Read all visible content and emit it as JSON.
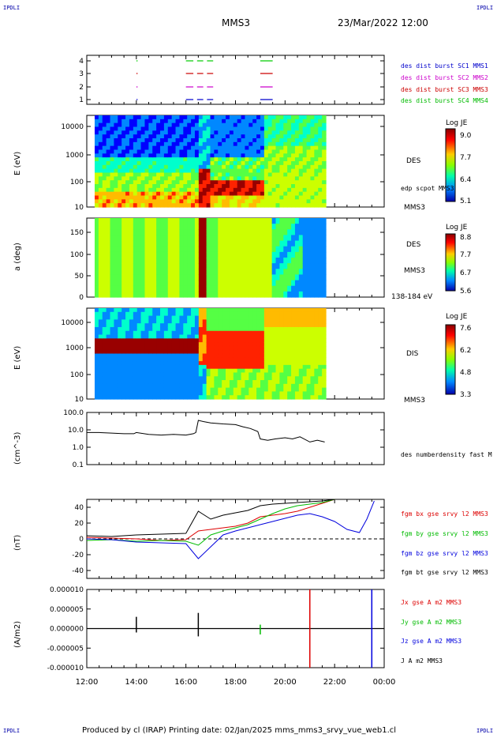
{
  "header": {
    "corner_tl": "IPDLI",
    "corner_tr": "IPDLI",
    "corner_bl": "IPDLI",
    "corner_br": "IPDLI",
    "spacecraft": "MMS3",
    "datetime": "23/Mar/2022 12:00"
  },
  "footer": {
    "text": "Produced by cl (IRAP)   Printing date: 02/Jan/2025   mms_mms3_srvy_vue_web1.cl"
  },
  "colors": {
    "mms1": "#0000cc",
    "mms2": "#cc00cc",
    "mms3": "#cc0000",
    "mms4": "#00cc00",
    "bx": "#dd0000",
    "by": "#00bb00",
    "bz": "#0000dd",
    "bt": "#000000"
  },
  "chart_data": [
    {
      "type": "scatter",
      "panel": "availability",
      "yticks": [
        "4",
        "3",
        "2",
        "1"
      ],
      "legend": [
        "des dist burst SC1 MMS1",
        "des dist burst SC2 MMS2",
        "des dist burst SC3 MMS3",
        "des dist burst SC4 MMS4"
      ]
    },
    {
      "type": "heatmap",
      "panel": "des-energy",
      "ylabel": "E (eV)",
      "yticks": [
        "10000",
        "1000",
        "100",
        "10"
      ],
      "right_labels": [
        "DES",
        "edp scpot MMS3",
        "MMS3"
      ],
      "colorbar": {
        "title": "Log JE",
        "ticks": [
          "9.0",
          "7.7",
          "6.4",
          "5.1"
        ]
      }
    },
    {
      "type": "heatmap",
      "panel": "des-pitch",
      "ylabel": "a (deg)",
      "yticks": [
        "150",
        "100",
        "50",
        "0"
      ],
      "right_labels": [
        "DES",
        "MMS3",
        "138-184 eV"
      ],
      "colorbar": {
        "title": "Log JE",
        "ticks": [
          "8.8",
          "7.7",
          "6.7",
          "5.6"
        ]
      }
    },
    {
      "type": "heatmap",
      "panel": "dis-energy",
      "ylabel": "E (eV)",
      "yticks": [
        "10000",
        "1000",
        "100",
        "10"
      ],
      "right_labels": [
        "DIS",
        "MMS3"
      ],
      "colorbar": {
        "title": "Log JE",
        "ticks": [
          "7.6",
          "6.2",
          "4.8",
          "3.3"
        ]
      }
    },
    {
      "type": "line",
      "panel": "density",
      "ylabel": "(cm^-3)",
      "yticks": [
        "100.0",
        "10.0",
        "1.0",
        "0.1"
      ],
      "legend": [
        "des numberdensity fast M"
      ],
      "x": [
        12.0,
        12.5,
        13.0,
        13.5,
        13.9,
        14.0,
        14.5,
        15.0,
        15.5,
        16.0,
        16.3,
        16.4,
        16.5,
        16.7,
        17.0,
        17.5,
        18.0,
        18.3,
        18.6,
        18.9,
        19.0,
        19.3,
        19.6,
        20.0,
        20.3,
        20.6,
        21.0,
        21.3,
        21.6
      ],
      "y": [
        7,
        7,
        6.5,
        6,
        6,
        7,
        5.5,
        5,
        5.5,
        5,
        6,
        7,
        35,
        30,
        25,
        22,
        20,
        15,
        12,
        8,
        3,
        2.5,
        3,
        3.5,
        3,
        4,
        2,
        2.5,
        2
      ]
    },
    {
      "type": "line",
      "panel": "magnetic-field",
      "ylabel": "(nT)",
      "yticks": [
        "40",
        "20",
        "0",
        "-20",
        "-40"
      ],
      "ylim": [
        -50,
        50
      ],
      "legend": [
        "fgm bx gse srvy l2 MMS3",
        "fgm by gse srvy l2 MMS3",
        "fgm bz gse srvy l2 MMS3",
        "fgm bt gse srvy l2 MMS3"
      ],
      "series": [
        {
          "name": "fgm bx gse srvy l2 MMS3",
          "x": [
            12,
            13,
            14,
            15,
            16,
            16.5,
            17,
            17.5,
            18,
            18.5,
            19,
            19.5,
            20,
            20.5,
            21,
            21.5,
            22
          ],
          "y": [
            2,
            1,
            0,
            -2,
            -1,
            10,
            12,
            14,
            16,
            20,
            28,
            30,
            32,
            35,
            40,
            45,
            50
          ]
        },
        {
          "name": "fgm by gse srvy l2 MMS3",
          "x": [
            12,
            13,
            14,
            15,
            16,
            16.5,
            17,
            17.5,
            18,
            18.5,
            19,
            19.5,
            20,
            20.5,
            21,
            21.5,
            22
          ],
          "y": [
            -2,
            -1,
            -3,
            -2,
            -3,
            -8,
            5,
            10,
            14,
            18,
            25,
            32,
            38,
            42,
            44,
            46,
            50
          ]
        },
        {
          "name": "fgm bz gse srvy l2 MMS3",
          "x": [
            12,
            13,
            14,
            15,
            16,
            16.5,
            17,
            17.5,
            18,
            18.5,
            19,
            19.5,
            20,
            20.5,
            21,
            21.5,
            22,
            22.5,
            23,
            23.3,
            23.6
          ],
          "y": [
            0,
            -1,
            -4,
            -5,
            -6,
            -25,
            -10,
            5,
            10,
            14,
            18,
            22,
            26,
            30,
            32,
            28,
            22,
            12,
            8,
            25,
            48
          ]
        },
        {
          "name": "fgm bt gse srvy l2 MMS3",
          "x": [
            12,
            13,
            14,
            15,
            16,
            16.5,
            17,
            17.5,
            18,
            18.5,
            19,
            19.5,
            20,
            20.5,
            21,
            21.5,
            22
          ],
          "y": [
            4,
            3,
            5,
            6,
            7,
            35,
            25,
            30,
            33,
            36,
            42,
            44,
            45,
            46,
            47,
            48,
            50
          ]
        }
      ]
    },
    {
      "type": "line",
      "panel": "current-density",
      "ylabel": "(A/m2)",
      "yticks": [
        "0.000010",
        "0.000005",
        "0.000000",
        "-0.000005",
        "-0.000010"
      ],
      "ylim": [
        -1e-05,
        1e-05
      ],
      "legend": [
        "Jx gse A m2 MMS3",
        "Jy gse A m2 MMS3",
        "Jz gse A m2 MMS3",
        "J A m2 MMS3"
      ],
      "xticks": [
        "12:00",
        "14:00",
        "16:00",
        "18:00",
        "20:00",
        "22:00",
        "00:00"
      ]
    }
  ]
}
